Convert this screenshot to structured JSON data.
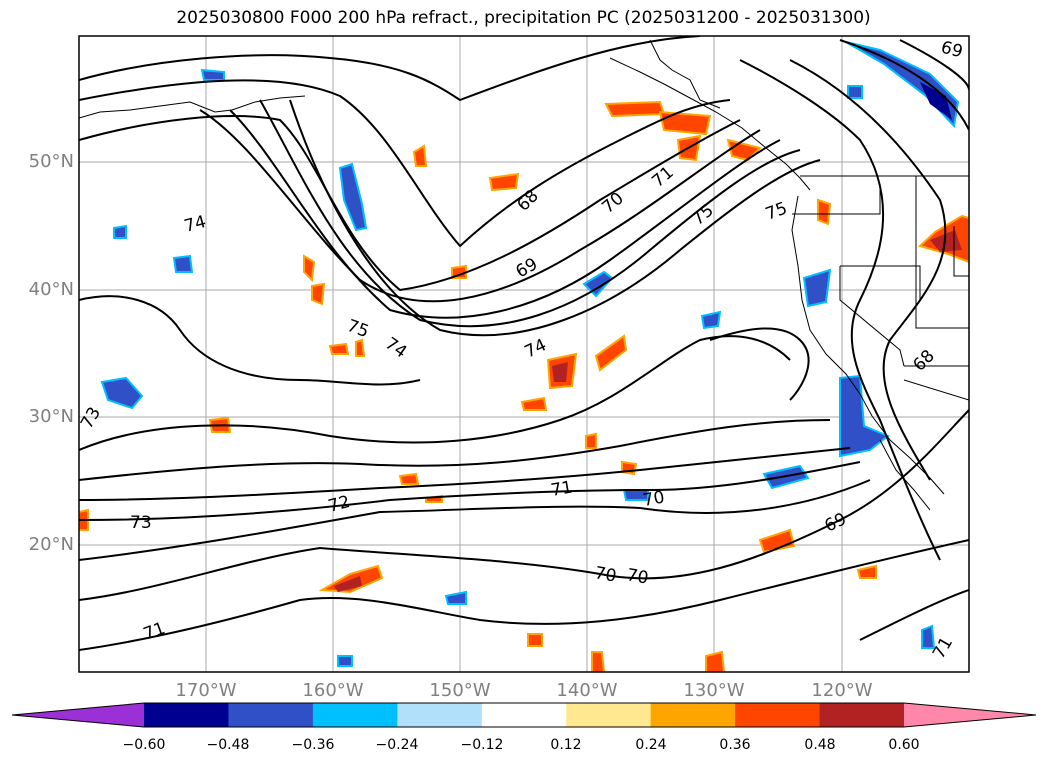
{
  "title": "2025030800 F000 200 hPa refract., precipitation PC (2025031200 - 2025031300)",
  "latitude_labels": [
    "50°N",
    "40°N",
    "30°N",
    "20°N"
  ],
  "longitude_labels": [
    "170°W",
    "160°W",
    "150°W",
    "140°W",
    "130°W",
    "120°W"
  ],
  "contour_labels": [
    "74",
    "75",
    "74",
    "68",
    "69",
    "70",
    "71",
    "75",
    "75",
    "74",
    "73",
    "72",
    "71",
    "70",
    "69",
    "73",
    "71",
    "70",
    "70",
    "68",
    "69",
    "71"
  ],
  "colorbar": {
    "tick_labels": [
      "−0.60",
      "−0.48",
      "−0.36",
      "−0.24",
      "−0.12",
      "0.12",
      "0.24",
      "0.36",
      "0.48",
      "0.60"
    ],
    "colors": [
      "#9b30d6",
      "#000090",
      "#3050c8",
      "#00bfff",
      "#b0e0fa",
      "#ffffff",
      "#ffe890",
      "#ffa500",
      "#ff4500",
      "#b22222",
      "#ff88aa"
    ]
  },
  "colors": {
    "contour": "#000000",
    "grid": "#aaaaaa",
    "coast": "#000000"
  }
}
